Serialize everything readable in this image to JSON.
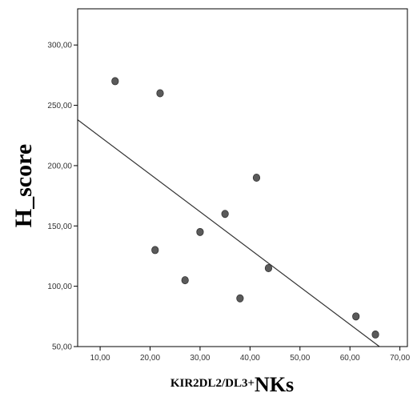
{
  "chart_data": {
    "type": "scatter",
    "title": "",
    "xlabel": {
      "main": "KIR2DL2/DL3+",
      "suffix": "NKs"
    },
    "ylabel": "H_score",
    "xlim": [
      5.5,
      71.5
    ],
    "ylim": [
      50,
      330
    ],
    "x_ticks": [
      10,
      20,
      30,
      40,
      50,
      60,
      70
    ],
    "x_tick_labels": [
      "10,00",
      "20,00",
      "30,00",
      "40,00",
      "50,00",
      "60,00",
      "70,00"
    ],
    "y_ticks": [
      50,
      100,
      150,
      200,
      250,
      300
    ],
    "y_tick_labels": [
      "50,00",
      "100,00",
      "150,00",
      "200,00",
      "250,00",
      "300,00"
    ],
    "grid": false,
    "points": [
      {
        "x": 13.0,
        "y": 270
      },
      {
        "x": 22.0,
        "y": 260
      },
      {
        "x": 21.0,
        "y": 130
      },
      {
        "x": 27.0,
        "y": 105
      },
      {
        "x": 30.0,
        "y": 145
      },
      {
        "x": 35.0,
        "y": 160
      },
      {
        "x": 38.0,
        "y": 90
      },
      {
        "x": 41.3,
        "y": 190
      },
      {
        "x": 43.7,
        "y": 115
      },
      {
        "x": 61.2,
        "y": 75
      },
      {
        "x": 65.1,
        "y": 60
      }
    ],
    "fit_line": {
      "x": [
        5.5,
        65.9
      ],
      "y": [
        238,
        50
      ]
    }
  }
}
